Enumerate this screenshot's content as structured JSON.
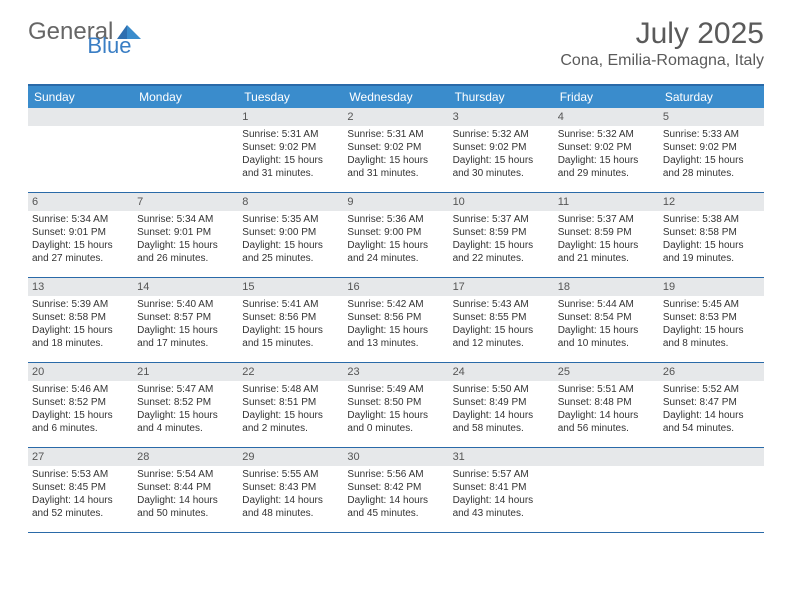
{
  "brand": {
    "part1": "General",
    "part2": "Blue"
  },
  "title": "July 2025",
  "location": "Cona, Emilia-Romagna, Italy",
  "colors": {
    "header_bg": "#3a8ccc",
    "header_text": "#ffffff",
    "row_divider": "#2a6aa8",
    "daynum_bg": "#e6e8ea",
    "text": "#333333",
    "muted": "#5a5a5a",
    "logo_blue": "#3a7ec4"
  },
  "days": [
    "Sunday",
    "Monday",
    "Tuesday",
    "Wednesday",
    "Thursday",
    "Friday",
    "Saturday"
  ],
  "weeks": [
    [
      null,
      null,
      {
        "n": "1",
        "sunrise": "5:31 AM",
        "sunset": "9:02 PM",
        "daylight": "15 hours and 31 minutes."
      },
      {
        "n": "2",
        "sunrise": "5:31 AM",
        "sunset": "9:02 PM",
        "daylight": "15 hours and 31 minutes."
      },
      {
        "n": "3",
        "sunrise": "5:32 AM",
        "sunset": "9:02 PM",
        "daylight": "15 hours and 30 minutes."
      },
      {
        "n": "4",
        "sunrise": "5:32 AM",
        "sunset": "9:02 PM",
        "daylight": "15 hours and 29 minutes."
      },
      {
        "n": "5",
        "sunrise": "5:33 AM",
        "sunset": "9:02 PM",
        "daylight": "15 hours and 28 minutes."
      }
    ],
    [
      {
        "n": "6",
        "sunrise": "5:34 AM",
        "sunset": "9:01 PM",
        "daylight": "15 hours and 27 minutes."
      },
      {
        "n": "7",
        "sunrise": "5:34 AM",
        "sunset": "9:01 PM",
        "daylight": "15 hours and 26 minutes."
      },
      {
        "n": "8",
        "sunrise": "5:35 AM",
        "sunset": "9:00 PM",
        "daylight": "15 hours and 25 minutes."
      },
      {
        "n": "9",
        "sunrise": "5:36 AM",
        "sunset": "9:00 PM",
        "daylight": "15 hours and 24 minutes."
      },
      {
        "n": "10",
        "sunrise": "5:37 AM",
        "sunset": "8:59 PM",
        "daylight": "15 hours and 22 minutes."
      },
      {
        "n": "11",
        "sunrise": "5:37 AM",
        "sunset": "8:59 PM",
        "daylight": "15 hours and 21 minutes."
      },
      {
        "n": "12",
        "sunrise": "5:38 AM",
        "sunset": "8:58 PM",
        "daylight": "15 hours and 19 minutes."
      }
    ],
    [
      {
        "n": "13",
        "sunrise": "5:39 AM",
        "sunset": "8:58 PM",
        "daylight": "15 hours and 18 minutes."
      },
      {
        "n": "14",
        "sunrise": "5:40 AM",
        "sunset": "8:57 PM",
        "daylight": "15 hours and 17 minutes."
      },
      {
        "n": "15",
        "sunrise": "5:41 AM",
        "sunset": "8:56 PM",
        "daylight": "15 hours and 15 minutes."
      },
      {
        "n": "16",
        "sunrise": "5:42 AM",
        "sunset": "8:56 PM",
        "daylight": "15 hours and 13 minutes."
      },
      {
        "n": "17",
        "sunrise": "5:43 AM",
        "sunset": "8:55 PM",
        "daylight": "15 hours and 12 minutes."
      },
      {
        "n": "18",
        "sunrise": "5:44 AM",
        "sunset": "8:54 PM",
        "daylight": "15 hours and 10 minutes."
      },
      {
        "n": "19",
        "sunrise": "5:45 AM",
        "sunset": "8:53 PM",
        "daylight": "15 hours and 8 minutes."
      }
    ],
    [
      {
        "n": "20",
        "sunrise": "5:46 AM",
        "sunset": "8:52 PM",
        "daylight": "15 hours and 6 minutes."
      },
      {
        "n": "21",
        "sunrise": "5:47 AM",
        "sunset": "8:52 PM",
        "daylight": "15 hours and 4 minutes."
      },
      {
        "n": "22",
        "sunrise": "5:48 AM",
        "sunset": "8:51 PM",
        "daylight": "15 hours and 2 minutes."
      },
      {
        "n": "23",
        "sunrise": "5:49 AM",
        "sunset": "8:50 PM",
        "daylight": "15 hours and 0 minutes."
      },
      {
        "n": "24",
        "sunrise": "5:50 AM",
        "sunset": "8:49 PM",
        "daylight": "14 hours and 58 minutes."
      },
      {
        "n": "25",
        "sunrise": "5:51 AM",
        "sunset": "8:48 PM",
        "daylight": "14 hours and 56 minutes."
      },
      {
        "n": "26",
        "sunrise": "5:52 AM",
        "sunset": "8:47 PM",
        "daylight": "14 hours and 54 minutes."
      }
    ],
    [
      {
        "n": "27",
        "sunrise": "5:53 AM",
        "sunset": "8:45 PM",
        "daylight": "14 hours and 52 minutes."
      },
      {
        "n": "28",
        "sunrise": "5:54 AM",
        "sunset": "8:44 PM",
        "daylight": "14 hours and 50 minutes."
      },
      {
        "n": "29",
        "sunrise": "5:55 AM",
        "sunset": "8:43 PM",
        "daylight": "14 hours and 48 minutes."
      },
      {
        "n": "30",
        "sunrise": "5:56 AM",
        "sunset": "8:42 PM",
        "daylight": "14 hours and 45 minutes."
      },
      {
        "n": "31",
        "sunrise": "5:57 AM",
        "sunset": "8:41 PM",
        "daylight": "14 hours and 43 minutes."
      },
      null,
      null
    ]
  ]
}
